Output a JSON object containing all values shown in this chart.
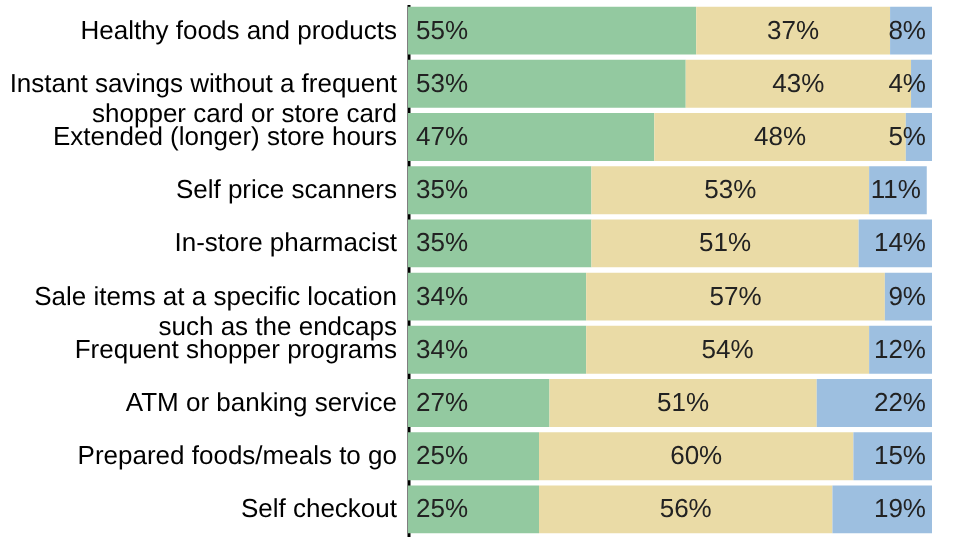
{
  "chart_data": {
    "type": "bar",
    "orientation": "horizontal",
    "stacked": true,
    "categories": [
      "Healthy foods and products",
      "Instant savings without a frequent shopper card or store card",
      "Extended (longer) store hours",
      "Self price scanners",
      "In-store pharmacist",
      "Sale items at a specific location such as the endcaps",
      "Frequent shopper programs",
      "ATM or banking service",
      "Prepared foods/meals to go",
      "Self checkout"
    ],
    "series": [
      {
        "color": "#93c9a0",
        "values": [
          55,
          53,
          47,
          35,
          35,
          34,
          34,
          27,
          25,
          25
        ],
        "value_labels": [
          "55%",
          "53%",
          "47%",
          "35%",
          "35%",
          "34%",
          "34%",
          "27%",
          "25%",
          "25%"
        ]
      },
      {
        "color": "#eadba6",
        "values": [
          37,
          43,
          48,
          53,
          51,
          57,
          54,
          51,
          60,
          56
        ],
        "value_labels": [
          "37%",
          "43%",
          "48%",
          "53%",
          "51%",
          "57%",
          "54%",
          "51%",
          "60%",
          "56%"
        ]
      },
      {
        "color": "#9dbfe0",
        "values": [
          8,
          4,
          5,
          11,
          14,
          9,
          12,
          22,
          15,
          19
        ],
        "value_labels": [
          "8%",
          "4%",
          "5%",
          "11%",
          "14%",
          "9%",
          "12%",
          "22%",
          "15%",
          "19%"
        ]
      }
    ]
  }
}
